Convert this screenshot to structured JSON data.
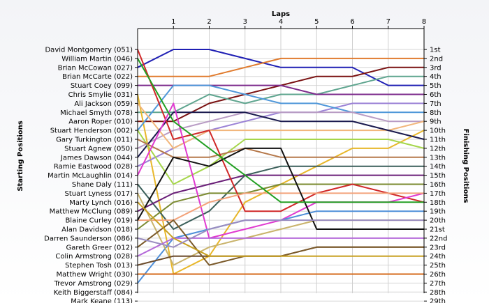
{
  "chart_data": {
    "type": "line",
    "title": "",
    "xlabel": "Laps",
    "ylabel_left": "Starting Positions",
    "ylabel_right": "Finishing Positions",
    "x": [
      0,
      1,
      2,
      3,
      4,
      5,
      6,
      7,
      8
    ],
    "x_tick_labels": [
      "1",
      "2",
      "3",
      "4",
      "5",
      "6",
      "7",
      "8"
    ],
    "drivers": [
      "David Montgomery (051)",
      "William Martin (046)",
      "Brian McCowan (027)",
      "Brian McCarte (022)",
      "Stuart Coey (099)",
      "Chris Smylie (031)",
      "Ali Jackson (059)",
      "Michael Smyth (078)",
      "Aaron Roper (010)",
      "Stuart Henderson (002)",
      "Gary Turkington (011)",
      "Stuart Agnew (050)",
      "James Dawson (044)",
      "Ramie Eastwood (028)",
      "Martin McLaughlin (014)",
      "Shane Daly (111)",
      "Stuart Lyness (017)",
      "Marty Lynch (016)",
      "Matthew McClung (089)",
      "Blaine Curley (019)",
      "Alan Davidson (018)",
      "Darren Saunderson (086)",
      "Gareth Greer (012)",
      "Colin Armstrong (028)",
      "Stephen Tosh (013)",
      "Matthew Wright (030)",
      "Trevor Amstrong (029)",
      "Keith Biggerstaff (084)",
      "Mark Keane (113)"
    ],
    "finishing_positions": [
      "1st",
      "2nd",
      "3rd",
      "4th",
      "5th",
      "6th",
      "7th",
      "8th",
      "9th",
      "10th",
      "11th",
      "12th",
      "13th",
      "14th",
      "15th",
      "16th",
      "17th",
      "18th",
      "19th",
      "20th",
      "21st",
      "22nd",
      "23rd",
      "24th",
      "25th",
      "26th",
      "27th",
      "28th",
      "29th"
    ],
    "ylim": [
      1,
      29
    ],
    "grid": true,
    "legend": "none",
    "series": [
      {
        "color": "#1f1fb4",
        "positions": [
          3,
          1,
          1,
          2,
          3,
          3,
          3,
          5,
          5
        ]
      },
      {
        "color": "#e07b2e",
        "positions": [
          4,
          4,
          4,
          3,
          2,
          2,
          2,
          2,
          2
        ]
      },
      {
        "color": "#7a1212",
        "positions": [
          9,
          9,
          7,
          6,
          5,
          4,
          4,
          3,
          3
        ]
      },
      {
        "color": "#5fa58f",
        "positions": [
          8,
          8,
          6,
          7,
          6,
          6,
          5,
          4,
          4
        ]
      },
      {
        "color": "#e8b72a",
        "positions": [
          6,
          26,
          24,
          18,
          16,
          14,
          12,
          12,
          10
        ]
      },
      {
        "color": "#7d2b8c",
        "positions": [
          5,
          5,
          5,
          5,
          5,
          6,
          6,
          6,
          6
        ]
      },
      {
        "color": "#9b82d6",
        "positions": [
          14,
          12,
          10,
          9,
          8,
          8,
          7,
          7,
          7
        ]
      },
      {
        "color": "#4f97d9",
        "positions": [
          10,
          5,
          5,
          6,
          7,
          7,
          8,
          8,
          8
        ]
      },
      {
        "color": "#b89bc4",
        "positions": [
          12,
          10,
          9,
          8,
          8,
          8,
          8,
          9,
          9
        ]
      },
      {
        "color": "#f2b67b",
        "positions": [
          7,
          12,
          10,
          10,
          10,
          10,
          10,
          10,
          9
        ]
      },
      {
        "color": "#1a1a4e",
        "positions": [
          13,
          8,
          8,
          8,
          9,
          9,
          9,
          10,
          11
        ]
      },
      {
        "color": "#a5d64a",
        "positions": [
          10,
          16,
          14,
          11,
          11,
          11,
          11,
          11,
          12
        ]
      },
      {
        "color": "#b5784a",
        "positions": [
          11,
          13,
          13,
          12,
          13,
          13,
          13,
          13,
          13
        ]
      },
      {
        "color": "#3a5f5a",
        "positions": [
          16,
          21,
          19,
          15,
          14,
          14,
          14,
          14,
          14
        ]
      },
      {
        "color": "#6a1f78",
        "positions": [
          19,
          17,
          16,
          15,
          15,
          15,
          15,
          15,
          15
        ]
      },
      {
        "color": "#7a8a2f",
        "positions": [
          21,
          18,
          17,
          17,
          16,
          16,
          16,
          16,
          16
        ]
      },
      {
        "color": "#d02828",
        "positions": [
          1,
          11,
          10,
          19,
          19,
          17,
          16,
          17,
          18
        ]
      },
      {
        "color": "#e03ad0",
        "positions": [
          15,
          7,
          22,
          21,
          20,
          18,
          18,
          18,
          17
        ]
      },
      {
        "color": "#f3a27a",
        "positions": [
          20,
          20,
          18,
          17,
          17,
          17,
          17,
          17,
          17
        ]
      },
      {
        "color": "#4f8fd9",
        "positions": [
          27,
          22,
          21,
          20,
          20,
          19,
          19,
          19,
          19
        ]
      },
      {
        "color": "#c9b36b",
        "positions": [
          17,
          25,
          23,
          22,
          21,
          20,
          20,
          20,
          20
        ]
      },
      {
        "color": "#111111",
        "positions": [
          20,
          13,
          14,
          12,
          12,
          21,
          21,
          21,
          21
        ]
      },
      {
        "color": "#b56bd9",
        "positions": [
          24,
          22,
          22,
          22,
          22,
          22,
          22,
          22,
          22
        ]
      },
      {
        "color": "#6b4a2a",
        "positions": [
          25,
          24,
          24,
          24,
          24,
          23,
          23,
          23,
          23
        ]
      },
      {
        "color": "#7b5a2a",
        "positions": [
          23,
          20,
          25,
          24,
          24,
          23,
          23,
          23,
          23
        ]
      },
      {
        "color": "#c8a020",
        "positions": [
          18,
          22,
          24,
          24,
          24,
          24,
          24,
          24,
          24
        ]
      },
      {
        "color": "#d46a1a",
        "positions": [
          26,
          26,
          26,
          26,
          26,
          26,
          26,
          26,
          26
        ]
      },
      {
        "color": "#23a023",
        "positions": [
          2,
          9,
          12,
          15,
          18,
          18,
          18,
          18,
          18
        ]
      },
      {
        "color": "#9a8cc0",
        "positions": [
          22,
          23,
          21,
          20,
          20,
          20,
          20,
          20,
          20
        ]
      }
    ]
  }
}
